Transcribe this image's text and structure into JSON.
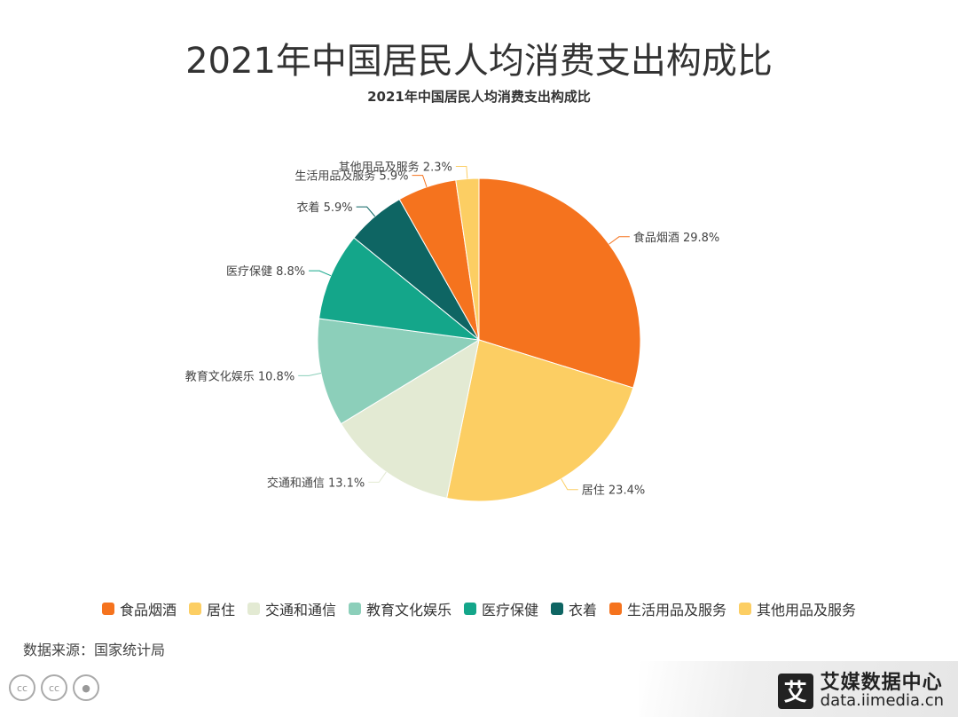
{
  "title": "2021年中国居民人均消费支出构成比",
  "chart_data": {
    "type": "pie",
    "title": "2021年中国居民人均消费支出构成比",
    "unit": "%",
    "slices": [
      {
        "name": "食品烟酒",
        "value": 29.8,
        "label": "食品烟酒 29.8%",
        "color": "#F5731E"
      },
      {
        "name": "居住",
        "value": 23.4,
        "label": "居住 23.4%",
        "color": "#FCCE63"
      },
      {
        "name": "交通和通信",
        "value": 13.1,
        "label": "交通和通信 13.1%",
        "color": "#E3EAD3"
      },
      {
        "name": "教育文化娱乐",
        "value": 10.8,
        "label": "教育文化娱乐 10.8%",
        "color": "#8CCFBA"
      },
      {
        "name": "医疗保健",
        "value": 8.8,
        "label": "医疗保健 8.8%",
        "color": "#14A68A"
      },
      {
        "name": "衣着",
        "value": 5.9,
        "label": "衣着 5.9%",
        "color": "#0E6563"
      },
      {
        "name": "生活用品及服务",
        "value": 5.9,
        "label": "生活用品及服务 5.9%",
        "color": "#F5731E"
      },
      {
        "name": "其他用品及服务",
        "value": 2.3,
        "label": "其他用品及服务 2.3%",
        "color": "#FCCE63"
      }
    ],
    "legend_position": "bottom"
  },
  "legend": [
    "食品烟酒",
    "居住",
    "交通和通信",
    "教育文化娱乐",
    "医疗保健",
    "衣着",
    "生活用品及服务",
    "其他用品及服务"
  ],
  "source": "数据来源：国家统计局",
  "brand": {
    "name": "艾媒数据中心",
    "url": "data.iimedia.cn",
    "logo_char": "艾"
  }
}
